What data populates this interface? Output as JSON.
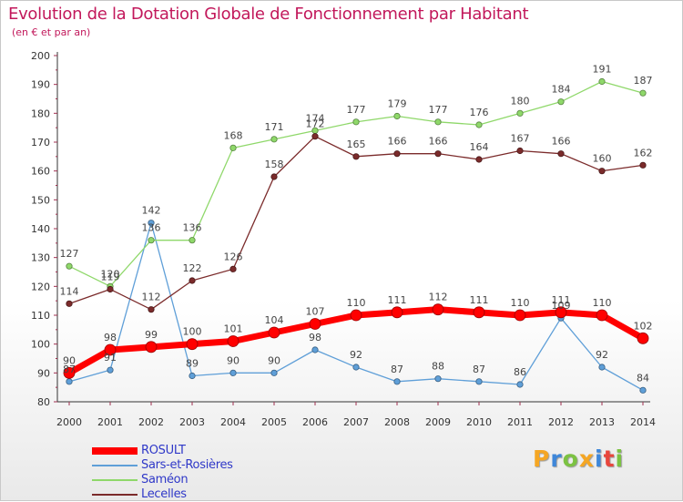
{
  "header": {
    "title": "Evolution de la Dotation Globale de Fonctionnement par Habitant",
    "subtitle": "(en € et par an)"
  },
  "chart_data": {
    "type": "line",
    "title": "Evolution de la Dotation Globale de Fonctionnement par Habitant",
    "subtitle": "(en € et par an)",
    "xlabel": "",
    "ylabel": "",
    "x": [
      "2000",
      "2001",
      "2002",
      "2003",
      "2004",
      "2005",
      "2006",
      "2007",
      "2008",
      "2009",
      "2010",
      "2011",
      "2012",
      "2013",
      "2014"
    ],
    "ylim": [
      80,
      200
    ],
    "yticks": [
      80,
      90,
      100,
      110,
      120,
      130,
      140,
      150,
      160,
      170,
      180,
      190,
      200
    ],
    "grid": false,
    "legend_position": "bottom-left",
    "series": [
      {
        "name": "ROSULT",
        "color": "#ff0000",
        "emphasis": "thick",
        "values": [
          90,
          98,
          99,
          100,
          101,
          104,
          107,
          110,
          111,
          112,
          111,
          110,
          111,
          110,
          102
        ]
      },
      {
        "name": "Sars-et-Rosières",
        "color": "#5f9fd8",
        "emphasis": "normal",
        "values": [
          87,
          91,
          142,
          89,
          90,
          90,
          98,
          92,
          87,
          88,
          87,
          86,
          109,
          92,
          84
        ]
      },
      {
        "name": "Saméon",
        "color": "#8fd86a",
        "emphasis": "normal",
        "values": [
          127,
          120,
          136,
          136,
          168,
          171,
          174,
          177,
          179,
          177,
          176,
          180,
          184,
          191,
          187
        ]
      },
      {
        "name": "Lecelles",
        "color": "#7b2b2b",
        "emphasis": "normal",
        "values": [
          114,
          119,
          112,
          122,
          126,
          158,
          172,
          165,
          166,
          166,
          164,
          167,
          166,
          160,
          162
        ]
      }
    ]
  },
  "brand": {
    "letters": [
      "P",
      "r",
      "o",
      "x",
      "i",
      "t",
      "i"
    ],
    "colors": [
      "#f5a623",
      "#3f87d9",
      "#7cc242",
      "#f5a623",
      "#3f87d9",
      "#e8463c",
      "#7cc242"
    ]
  }
}
